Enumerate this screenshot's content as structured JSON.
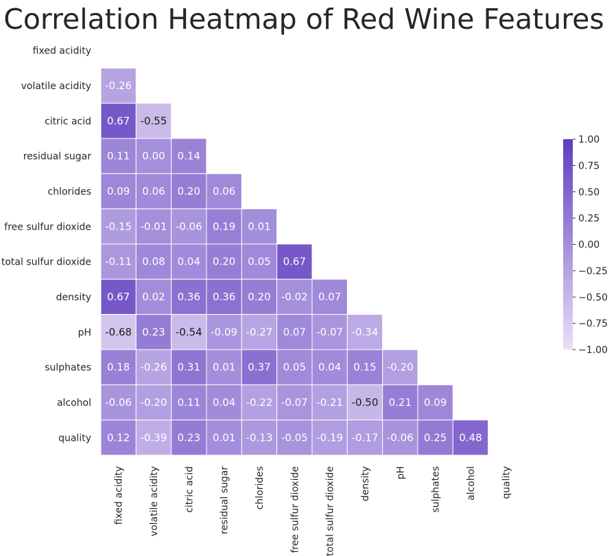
{
  "chart_data": {
    "type": "heatmap",
    "title": "Correlation Heatmap of Red Wine Features",
    "xlabel": "",
    "ylabel": "",
    "variables": [
      "fixed acidity",
      "volatile acidity",
      "citric acid",
      "residual sugar",
      "chlorides",
      "free sulfur dioxide",
      "total sulfur dioxide",
      "density",
      "pH",
      "sulphates",
      "alcohol",
      "quality"
    ],
    "lower_triangle": [
      [],
      [
        -0.26
      ],
      [
        0.67,
        -0.55
      ],
      [
        0.11,
        0.0,
        0.14
      ],
      [
        0.09,
        0.06,
        0.2,
        0.06
      ],
      [
        -0.15,
        -0.01,
        -0.06,
        0.19,
        0.01
      ],
      [
        -0.11,
        0.08,
        0.04,
        0.2,
        0.05,
        0.67
      ],
      [
        0.67,
        0.02,
        0.36,
        0.36,
        0.2,
        -0.02,
        0.07
      ],
      [
        -0.68,
        0.23,
        -0.54,
        -0.09,
        -0.27,
        0.07,
        -0.07,
        -0.34
      ],
      [
        0.18,
        -0.26,
        0.31,
        0.01,
        0.37,
        0.05,
        0.04,
        0.15,
        -0.2
      ],
      [
        -0.06,
        -0.2,
        0.11,
        0.04,
        -0.22,
        -0.07,
        -0.21,
        -0.5,
        0.21,
        0.09
      ],
      [
        0.12,
        -0.39,
        0.23,
        0.01,
        -0.13,
        -0.05,
        -0.19,
        -0.17,
        -0.06,
        0.25,
        0.48
      ]
    ],
    "mask": "upper triangle and diagonal hidden",
    "value_format": "0.00",
    "colorbar": {
      "range": [
        -1.0,
        1.0
      ],
      "ticks": [
        "1.00",
        "0.75",
        "0.50",
        "0.25",
        "0.00",
        "−0.25",
        "−0.50",
        "−0.75",
        "−1.00"
      ],
      "tick_values": [
        1.0,
        0.75,
        0.5,
        0.25,
        0.0,
        -0.25,
        -0.5,
        -0.75,
        -1.0
      ],
      "low_color": "#e9e0f7",
      "high_color": "#5f3dbf"
    },
    "colors": {
      "text_dark": "#262626",
      "label_light": "#ffffff",
      "label_dark": "#1a1a1a",
      "cell_border": "#ffffff"
    }
  }
}
